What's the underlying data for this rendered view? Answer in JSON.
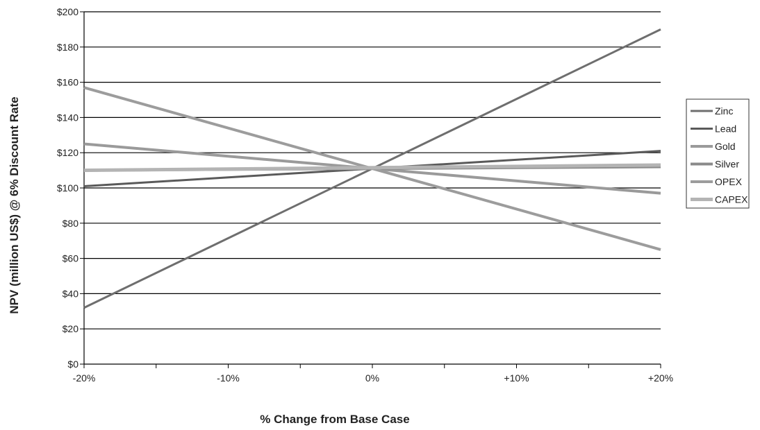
{
  "chart_data": {
    "type": "line",
    "title": "",
    "xlabel": "% Change from Base Case",
    "ylabel": "NPV (million US$) @ 6% Discount Rate",
    "x": [
      -20,
      20
    ],
    "x_ticks": [
      -20,
      -10,
      0,
      10,
      20
    ],
    "x_tick_labels": [
      "-20%",
      "-10%",
      "0%",
      "+10%",
      "+20%"
    ],
    "ylim": [
      0,
      200
    ],
    "y_ticks": [
      0,
      20,
      40,
      60,
      80,
      100,
      120,
      140,
      160,
      180,
      200
    ],
    "y_tick_labels": [
      "$0",
      "$20",
      "$40",
      "$60",
      "$80",
      "$100",
      "$120",
      "$140",
      "$160",
      "$180",
      "$200"
    ],
    "grid": true,
    "legend_position": "right",
    "series": [
      {
        "name": "Zinc",
        "values": [
          32,
          190
        ],
        "color": "#6e6e6e",
        "width": 3
      },
      {
        "name": "Lead",
        "values": [
          101,
          121
        ],
        "color": "#5a5a5a",
        "width": 3
      },
      {
        "name": "Gold",
        "values": [
          125,
          97
        ],
        "color": "#9a9a9a",
        "width": 4
      },
      {
        "name": "Silver",
        "values": [
          110,
          112
        ],
        "color": "#8a8a8a",
        "width": 4
      },
      {
        "name": "OPEX",
        "values": [
          157,
          65
        ],
        "color": "#9c9c9c",
        "width": 4
      },
      {
        "name": "CAPEX",
        "values": [
          110,
          113
        ],
        "color": "#b4b4b4",
        "width": 5
      }
    ]
  }
}
